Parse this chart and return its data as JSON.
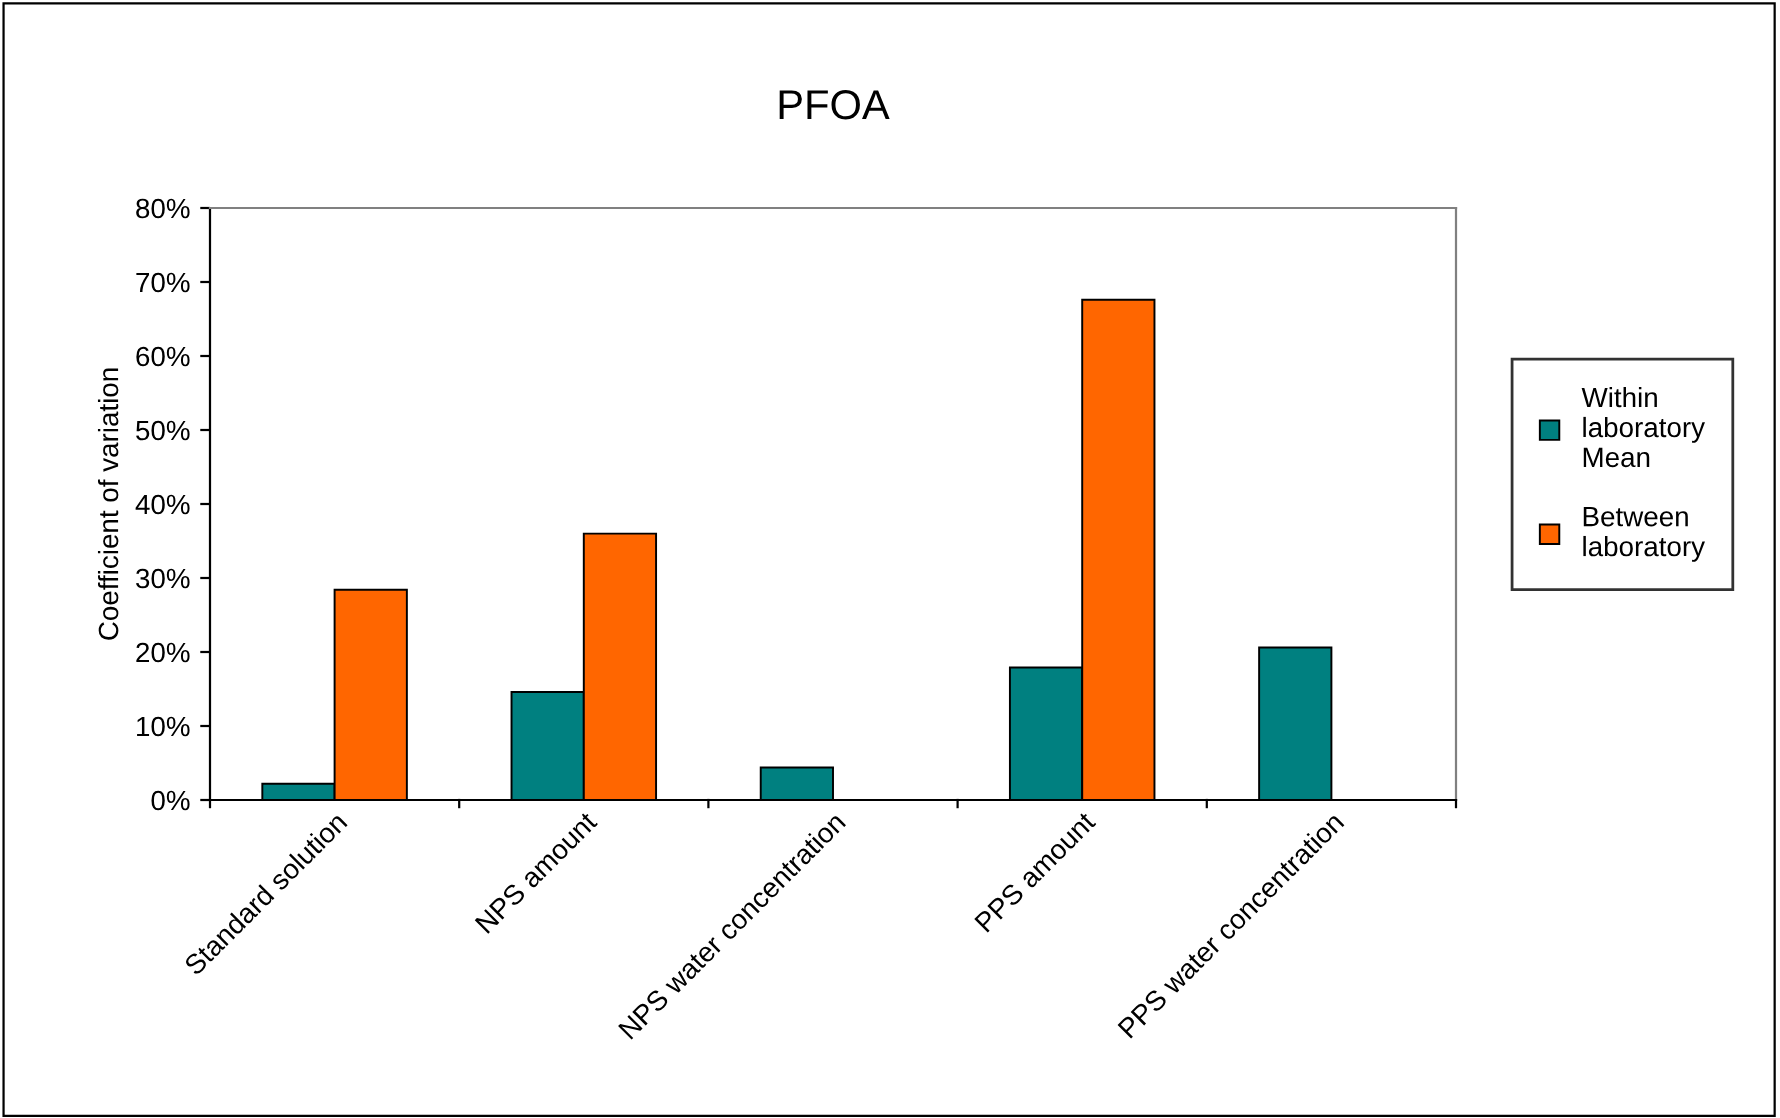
{
  "chart_data": {
    "type": "bar",
    "title": "PFOA",
    "ylabel": "Coefficient of variation",
    "categories": [
      "Standard solution",
      "NPS amount",
      "NPS water concentration",
      "PPS amount",
      "PPS water concentration"
    ],
    "series": [
      {
        "name": "Within laboratory Mean",
        "color": "#008080",
        "values": [
          2.2,
          14.6,
          4.4,
          17.9,
          20.6
        ]
      },
      {
        "name": "Between laboratory",
        "color": "#ff6600",
        "values": [
          28.4,
          36.0,
          null,
          67.6,
          null
        ]
      }
    ],
    "ylim": [
      0,
      80
    ],
    "yticks": [
      {
        "value": 0,
        "label": "0%"
      },
      {
        "value": 10,
        "label": "10%"
      },
      {
        "value": 20,
        "label": "20%"
      },
      {
        "value": 30,
        "label": "30%"
      },
      {
        "value": 40,
        "label": "40%"
      },
      {
        "value": 50,
        "label": "50%"
      },
      {
        "value": 60,
        "label": "60%"
      },
      {
        "value": 70,
        "label": "70%"
      },
      {
        "value": 80,
        "label": "80%"
      }
    ],
    "grid": false,
    "legend": "right"
  }
}
